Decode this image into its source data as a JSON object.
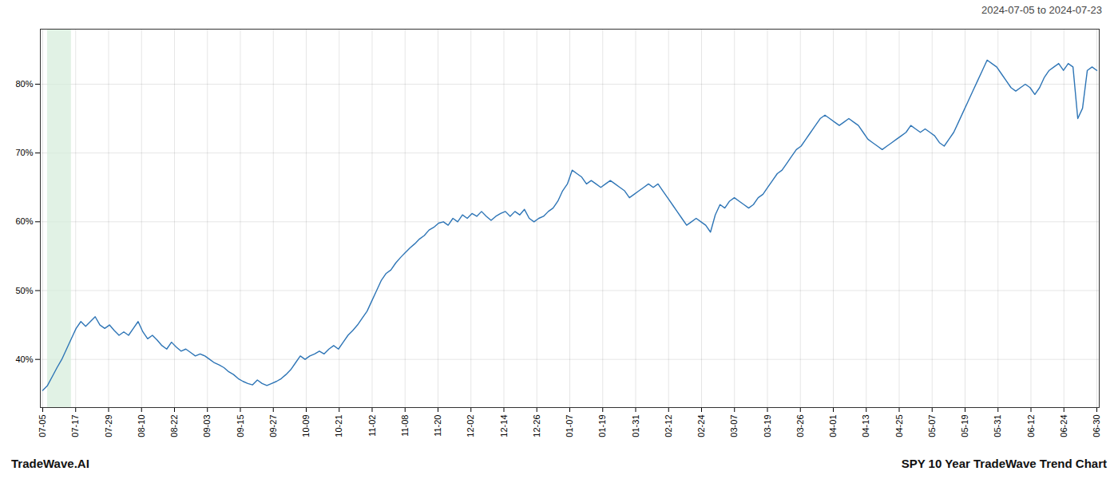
{
  "chart_data": {
    "type": "line",
    "title": "SPY 10 Year TradeWave Trend Chart",
    "subtitle": "2024-07-05 to 2024-07-23",
    "annotations": [
      "TradeWave.AI"
    ],
    "color": "#2e75b6",
    "grid": true,
    "highlight_range": [
      1,
      6
    ],
    "highlight_color": "#d4edda",
    "xlim": [
      -0.5,
      221.5
    ],
    "xticks": [
      {
        "value": 0,
        "label": "07-05"
      },
      {
        "value": 6.90625,
        "label": "07-17"
      },
      {
        "value": 13.8125,
        "label": "07-29"
      },
      {
        "value": 20.71875,
        "label": "08-10"
      },
      {
        "value": 27.625,
        "label": "08-22"
      },
      {
        "value": 34.53125,
        "label": "09-03"
      },
      {
        "value": 41.4375,
        "label": "09-15"
      },
      {
        "value": 48.34375,
        "label": "09-27"
      },
      {
        "value": 55.25,
        "label": "10-09"
      },
      {
        "value": 62.15625,
        "label": "10-21"
      },
      {
        "value": 69.0625,
        "label": "11-02"
      },
      {
        "value": 75.96875,
        "label": "11-08"
      },
      {
        "value": 82.875,
        "label": "11-20"
      },
      {
        "value": 89.78125,
        "label": "12-02"
      },
      {
        "value": 96.6875,
        "label": "12-14"
      },
      {
        "value": 103.59375,
        "label": "12-26"
      },
      {
        "value": 110.5,
        "label": "01-07"
      },
      {
        "value": 117.40625,
        "label": "01-19"
      },
      {
        "value": 124.3125,
        "label": "01-31"
      },
      {
        "value": 131.21875,
        "label": "02-12"
      },
      {
        "value": 138.125,
        "label": "02-24"
      },
      {
        "value": 145.03125,
        "label": "03-07"
      },
      {
        "value": 151.9375,
        "label": "03-19"
      },
      {
        "value": 158.84375,
        "label": "03-26"
      },
      {
        "value": 165.75,
        "label": "04-01"
      },
      {
        "value": 172.65625,
        "label": "04-13"
      },
      {
        "value": 179.5625,
        "label": "04-25"
      },
      {
        "value": 186.46875,
        "label": "05-07"
      },
      {
        "value": 193.375,
        "label": "05-19"
      },
      {
        "value": 200.28125,
        "label": "05-31"
      },
      {
        "value": 207.1875,
        "label": "06-12"
      },
      {
        "value": 214.09375,
        "label": "06-24"
      },
      {
        "value": 221,
        "label": "06-30"
      }
    ],
    "ylim": [
      33,
      88
    ],
    "yticks": [
      {
        "value": 40,
        "label": "40%"
      },
      {
        "value": 50,
        "label": "50%"
      },
      {
        "value": 60,
        "label": "60%"
      },
      {
        "value": 70,
        "label": "70%"
      },
      {
        "value": 80,
        "label": "80%"
      }
    ],
    "x": [
      0,
      1,
      2,
      3,
      4,
      5,
      6,
      7,
      8,
      9,
      10,
      11,
      12,
      13,
      14,
      15,
      16,
      17,
      18,
      19,
      20,
      21,
      22,
      23,
      24,
      25,
      26,
      27,
      28,
      29,
      30,
      31,
      32,
      33,
      34,
      35,
      36,
      37,
      38,
      39,
      40,
      41,
      42,
      43,
      44,
      45,
      46,
      47,
      48,
      49,
      50,
      51,
      52,
      53,
      54,
      55,
      56,
      57,
      58,
      59,
      60,
      61,
      62,
      63,
      64,
      65,
      66,
      67,
      68,
      69,
      70,
      71,
      72,
      73,
      74,
      75,
      76,
      77,
      78,
      79,
      80,
      81,
      82,
      83,
      84,
      85,
      86,
      87,
      88,
      89,
      90,
      91,
      92,
      93,
      94,
      95,
      96,
      97,
      98,
      99,
      100,
      101,
      102,
      103,
      104,
      105,
      106,
      107,
      108,
      109,
      110,
      111,
      112,
      113,
      114,
      115,
      116,
      117,
      118,
      119,
      120,
      121,
      122,
      123,
      124,
      125,
      126,
      127,
      128,
      129,
      130,
      131,
      132,
      133,
      134,
      135,
      136,
      137,
      138,
      139,
      140,
      141,
      142,
      143,
      144,
      145,
      146,
      147,
      148,
      149,
      150,
      151,
      152,
      153,
      154,
      155,
      156,
      157,
      158,
      159,
      160,
      161,
      162,
      163,
      164,
      165,
      166,
      167,
      168,
      169,
      170,
      171,
      172,
      173,
      174,
      175,
      176,
      177,
      178,
      179,
      180,
      181,
      182,
      183,
      184,
      185,
      186,
      187,
      188,
      189,
      190,
      191,
      192,
      193,
      194,
      195,
      196,
      197,
      198,
      199,
      200,
      201,
      202,
      203,
      204,
      205,
      206,
      207,
      208,
      209,
      210,
      211,
      212,
      213,
      214,
      215,
      216,
      217,
      218,
      219,
      220,
      221
    ],
    "values": [
      35.5,
      36.2,
      37.5,
      38.8,
      40.0,
      41.5,
      43.0,
      44.5,
      45.5,
      44.8,
      45.5,
      46.2,
      45.0,
      44.5,
      45.0,
      44.2,
      43.5,
      44.0,
      43.5,
      44.5,
      45.5,
      44.0,
      43.0,
      43.5,
      42.8,
      42.0,
      41.5,
      42.5,
      41.8,
      41.2,
      41.5,
      41.0,
      40.5,
      40.8,
      40.5,
      40.0,
      39.5,
      39.2,
      38.8,
      38.2,
      37.8,
      37.2,
      36.8,
      36.5,
      36.3,
      37.0,
      36.5,
      36.2,
      36.5,
      36.8,
      37.2,
      37.8,
      38.5,
      39.5,
      40.5,
      40.0,
      40.5,
      40.8,
      41.2,
      40.8,
      41.5,
      42.0,
      41.5,
      42.5,
      43.5,
      44.2,
      45.0,
      46.0,
      47.0,
      48.5,
      50.0,
      51.5,
      52.5,
      53.0,
      54.0,
      54.8,
      55.5,
      56.2,
      56.8,
      57.5,
      58.0,
      58.8,
      59.2,
      59.8,
      60.0,
      59.5,
      60.5,
      60.0,
      61.0,
      60.5,
      61.2,
      60.8,
      61.5,
      60.8,
      60.2,
      60.8,
      61.2,
      61.5,
      60.8,
      61.5,
      61.0,
      61.8,
      60.5,
      60.0,
      60.5,
      60.8,
      61.5,
      62.0,
      63.0,
      64.5,
      65.5,
      67.5,
      67.0,
      66.5,
      65.5,
      66.0,
      65.5,
      65.0,
      65.5,
      66.0,
      65.5,
      65.0,
      64.5,
      63.5,
      64.0,
      64.5,
      65.0,
      65.5,
      65.0,
      65.5,
      64.5,
      63.5,
      62.5,
      61.5,
      60.5,
      59.5,
      60.0,
      60.5,
      60.0,
      59.5,
      58.5,
      61.0,
      62.5,
      62.0,
      63.0,
      63.5,
      63.0,
      62.5,
      62.0,
      62.5,
      63.5,
      64.0,
      65.0,
      66.0,
      67.0,
      67.5,
      68.5,
      69.5,
      70.5,
      71.0,
      72.0,
      73.0,
      74.0,
      75.0,
      75.5,
      75.0,
      74.5,
      74.0,
      74.5,
      75.0,
      74.5,
      74.0,
      73.0,
      72.0,
      71.5,
      71.0,
      70.5,
      71.0,
      71.5,
      72.0,
      72.5,
      73.0,
      74.0,
      73.5,
      73.0,
      73.5,
      73.0,
      72.5,
      71.5,
      71.0,
      72.0,
      73.0,
      74.5,
      76.0,
      77.5,
      79.0,
      80.5,
      82.0,
      83.5,
      83.0,
      82.5,
      81.5,
      80.5,
      79.5,
      79.0,
      79.5,
      80.0,
      79.5,
      78.5,
      79.5,
      81.0,
      82.0,
      82.5,
      83.0,
      82.0,
      83.0,
      82.5,
      75.0,
      76.5,
      82.0,
      82.5,
      82.0
    ]
  }
}
